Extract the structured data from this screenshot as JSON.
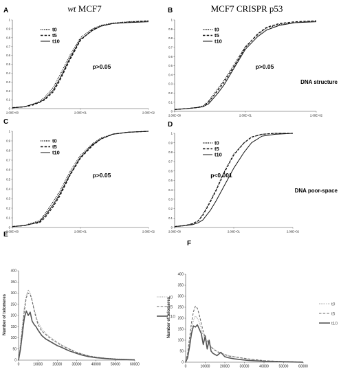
{
  "figure": {
    "col_titles": {
      "left_prefix": "wt",
      "left_suffix": " MCF7",
      "right": "MCF7 CRISPR p53"
    },
    "row_labels": {
      "top": "DNA structure",
      "middle": "DNA poor-space"
    }
  },
  "chart_data": [
    {
      "panel": "A",
      "type": "line",
      "x_scale": "log",
      "xlim": [
        2,
        200
      ],
      "ylim": [
        0,
        1
      ],
      "y_ticks": [
        "0",
        "0.1",
        "0.2",
        "0.3",
        "0.4",
        "0.5",
        "0.6",
        "0.7",
        "0.8",
        "0.9",
        "1"
      ],
      "x_ticks": [
        {
          "value": 2,
          "label": "2.00E+00"
        },
        {
          "value": 20,
          "label": "2.00E+01"
        },
        {
          "value": 200,
          "label": "2.00E+02"
        }
      ],
      "annotation": "p>0.05",
      "series": [
        {
          "name": "t0",
          "style": "dotted",
          "x": [
            2,
            3,
            4,
            5,
            6,
            8,
            10,
            14,
            20,
            30,
            40,
            60,
            100,
            200
          ],
          "y": [
            0.01,
            0.02,
            0.05,
            0.08,
            0.13,
            0.24,
            0.38,
            0.6,
            0.8,
            0.9,
            0.94,
            0.965,
            0.98,
            0.99
          ]
        },
        {
          "name": "t5",
          "style": "dashed",
          "x": [
            2,
            3,
            4,
            5,
            6,
            8,
            10,
            14,
            20,
            30,
            40,
            60,
            100,
            200
          ],
          "y": [
            0.01,
            0.02,
            0.04,
            0.07,
            0.1,
            0.19,
            0.32,
            0.55,
            0.77,
            0.89,
            0.93,
            0.96,
            0.975,
            0.99
          ]
        },
        {
          "name": "t10",
          "style": "solid",
          "x": [
            2,
            3,
            4,
            5,
            6,
            8,
            10,
            14,
            20,
            30,
            40,
            60,
            100,
            200
          ],
          "y": [
            0.01,
            0.02,
            0.05,
            0.07,
            0.11,
            0.21,
            0.34,
            0.57,
            0.78,
            0.88,
            0.93,
            0.96,
            0.97,
            0.98
          ]
        }
      ]
    },
    {
      "panel": "B",
      "type": "line",
      "x_scale": "log",
      "xlim": [
        2,
        200
      ],
      "ylim": [
        0,
        1
      ],
      "y_ticks": [
        "0",
        "0.1",
        "0.2",
        "0.3",
        "0.4",
        "0.5",
        "0.6",
        "0.7",
        "0.8",
        "0.9",
        "1"
      ],
      "x_ticks": [
        {
          "value": 2,
          "label": "2.00E+00"
        },
        {
          "value": 20,
          "label": "2.00E+01"
        },
        {
          "value": 200,
          "label": "2.00E+02"
        }
      ],
      "annotation": "p>0.05",
      "series": [
        {
          "name": "t0",
          "style": "dotted",
          "x": [
            2,
            3,
            4,
            5,
            6,
            8,
            10,
            14,
            20,
            30,
            40,
            60,
            100,
            200
          ],
          "y": [
            0.02,
            0.03,
            0.04,
            0.06,
            0.11,
            0.24,
            0.34,
            0.52,
            0.71,
            0.84,
            0.91,
            0.95,
            0.97,
            0.99
          ]
        },
        {
          "name": "t5",
          "style": "dashed",
          "x": [
            2,
            3,
            4,
            5,
            6,
            8,
            10,
            14,
            20,
            30,
            40,
            60,
            100,
            200
          ],
          "y": [
            0.02,
            0.03,
            0.04,
            0.05,
            0.1,
            0.22,
            0.32,
            0.5,
            0.7,
            0.85,
            0.92,
            0.96,
            0.98,
            0.99
          ]
        },
        {
          "name": "t10",
          "style": "solid",
          "x": [
            2,
            3,
            4,
            5,
            6,
            8,
            10,
            14,
            20,
            30,
            40,
            60,
            100,
            200
          ],
          "y": [
            0.02,
            0.03,
            0.04,
            0.05,
            0.08,
            0.19,
            0.29,
            0.48,
            0.68,
            0.82,
            0.89,
            0.94,
            0.97,
            0.98
          ]
        }
      ]
    },
    {
      "panel": "C",
      "type": "line",
      "x_scale": "log",
      "xlim": [
        2,
        200
      ],
      "ylim": [
        0,
        1
      ],
      "y_ticks": [
        "0",
        "0.1",
        "0.2",
        "0.3",
        "0.4",
        "0.5",
        "0.6",
        "0.7",
        "0.8",
        "0.9",
        "1"
      ],
      "x_ticks": [
        {
          "value": 2,
          "label": "2.00E+00"
        },
        {
          "value": 20,
          "label": "2.00E+01"
        },
        {
          "value": 200,
          "label": "2.00E+02"
        }
      ],
      "annotation": "p>0.05",
      "series": [
        {
          "name": "t0",
          "style": "dotted",
          "x": [
            2,
            3,
            4,
            5,
            6,
            8,
            10,
            14,
            20,
            30,
            40,
            60,
            100,
            200
          ],
          "y": [
            0.01,
            0.02,
            0.05,
            0.07,
            0.14,
            0.27,
            0.38,
            0.58,
            0.75,
            0.87,
            0.93,
            0.97,
            0.99,
            1.0
          ]
        },
        {
          "name": "t5",
          "style": "dashed",
          "x": [
            2,
            3,
            4,
            5,
            6,
            8,
            10,
            14,
            20,
            30,
            40,
            60,
            100,
            200
          ],
          "y": [
            0.01,
            0.02,
            0.04,
            0.05,
            0.1,
            0.22,
            0.33,
            0.54,
            0.72,
            0.85,
            0.92,
            0.97,
            0.99,
            1.0
          ]
        },
        {
          "name": "t10",
          "style": "solid",
          "x": [
            2,
            3,
            4,
            5,
            6,
            8,
            10,
            14,
            20,
            30,
            40,
            60,
            100,
            200
          ],
          "y": [
            0.01,
            0.02,
            0.04,
            0.06,
            0.12,
            0.24,
            0.35,
            0.55,
            0.73,
            0.86,
            0.92,
            0.97,
            0.99,
            1.0
          ]
        }
      ]
    },
    {
      "panel": "D",
      "type": "line",
      "x_scale": "log",
      "xlim": [
        2,
        200
      ],
      "ylim": [
        0,
        1
      ],
      "y_ticks": [
        "0",
        "0.1",
        "0.2",
        "0.3",
        "0.4",
        "0.5",
        "0.6",
        "0.7",
        "0.8",
        "0.9",
        "1"
      ],
      "x_ticks": [
        {
          "value": 2,
          "label": "2.00E+00"
        },
        {
          "value": 20,
          "label": "2.00E+01"
        },
        {
          "value": 200,
          "label": "2.00E+02"
        }
      ],
      "annotation": "p<0.001",
      "series": [
        {
          "name": "t0",
          "style": "dotted",
          "x": [
            2,
            3,
            4,
            5,
            6,
            8,
            10,
            14,
            20,
            30,
            40,
            60,
            100,
            200
          ],
          "y": [
            0.01,
            0.02,
            0.04,
            0.07,
            0.14,
            0.28,
            0.4,
            0.6,
            0.78,
            0.9,
            0.96,
            0.99,
            1.0,
            1.0
          ]
        },
        {
          "name": "t5",
          "style": "dashed",
          "x": [
            2,
            3,
            4,
            5,
            6,
            8,
            10,
            14,
            20,
            30,
            40,
            60,
            100,
            200
          ],
          "y": [
            0.01,
            0.02,
            0.04,
            0.07,
            0.13,
            0.27,
            0.39,
            0.59,
            0.77,
            0.9,
            0.96,
            0.99,
            1.0,
            1.0
          ]
        },
        {
          "name": "t10",
          "style": "solid",
          "x": [
            2,
            3,
            4,
            5,
            6,
            8,
            10,
            14,
            20,
            30,
            40,
            60,
            100,
            200
          ],
          "y": [
            0.01,
            0.02,
            0.03,
            0.05,
            0.08,
            0.18,
            0.28,
            0.45,
            0.63,
            0.8,
            0.9,
            0.97,
            0.99,
            1.0
          ]
        }
      ]
    },
    {
      "panel": "E",
      "type": "line",
      "xlim": [
        0,
        60000
      ],
      "ylim": [
        0,
        400
      ],
      "ylabel": "Number of telomeres",
      "y_ticks": [
        "0",
        "50",
        "100",
        "150",
        "200",
        "250",
        "300",
        "350",
        "400"
      ],
      "x_ticks": [
        {
          "value": 0,
          "label": "0"
        },
        {
          "value": 10000,
          "label": "10000"
        },
        {
          "value": 20000,
          "label": "20000"
        },
        {
          "value": 30000,
          "label": "30000"
        },
        {
          "value": 40000,
          "label": "40000"
        },
        {
          "value": 50000,
          "label": "50000"
        },
        {
          "value": 60000,
          "label": "60000"
        }
      ],
      "series": [
        {
          "name": "t0",
          "style": "dotted",
          "x": [
            0,
            1000,
            2000,
            3000,
            4000,
            5000,
            6000,
            7000,
            8000,
            9000,
            10000,
            12000,
            14000,
            16000,
            18000,
            20000,
            22000,
            24000,
            26000,
            28000,
            30000,
            33000,
            36000,
            40000,
            45000,
            50000,
            55000,
            60000
          ],
          "y": [
            0,
            80,
            160,
            240,
            290,
            315,
            300,
            270,
            230,
            200,
            170,
            140,
            120,
            105,
            92,
            80,
            70,
            60,
            52,
            44,
            36,
            28,
            20,
            14,
            9,
            6,
            4,
            2
          ]
        },
        {
          "name": "t5",
          "style": "dashed",
          "x": [
            0,
            1000,
            2000,
            3000,
            4000,
            5000,
            6000,
            7000,
            8000,
            9000,
            10000,
            12000,
            14000,
            16000,
            18000,
            20000,
            22000,
            24000,
            26000,
            28000,
            30000,
            33000,
            36000,
            40000,
            45000,
            50000,
            55000,
            60000
          ],
          "y": [
            0,
            60,
            140,
            220,
            280,
            300,
            295,
            265,
            225,
            190,
            160,
            130,
            115,
            100,
            88,
            78,
            66,
            58,
            50,
            42,
            34,
            26,
            19,
            13,
            8,
            5,
            3,
            2
          ]
        },
        {
          "name": "t10",
          "style": "solid",
          "x": [
            0,
            1000,
            2000,
            3000,
            4000,
            5000,
            6000,
            7000,
            8000,
            9000,
            10000,
            12000,
            14000,
            16000,
            18000,
            20000,
            22000,
            24000,
            26000,
            28000,
            30000,
            33000,
            36000,
            40000,
            45000,
            50000,
            55000,
            60000
          ],
          "y": [
            0,
            50,
            120,
            190,
            220,
            200,
            215,
            175,
            160,
            150,
            135,
            110,
            95,
            85,
            75,
            65,
            58,
            50,
            42,
            36,
            30,
            22,
            16,
            11,
            7,
            4,
            3,
            1
          ]
        }
      ]
    },
    {
      "panel": "F",
      "type": "line",
      "xlim": [
        0,
        60000
      ],
      "ylim": [
        0,
        400
      ],
      "ylabel": "Number of telomeres",
      "y_ticks": [
        "0",
        "50",
        "100",
        "150",
        "200",
        "250",
        "300",
        "350",
        "400"
      ],
      "x_ticks": [
        {
          "value": 0,
          "label": "0"
        },
        {
          "value": 10000,
          "label": "10000"
        },
        {
          "value": 20000,
          "label": "20000"
        },
        {
          "value": 30000,
          "label": "30000"
        },
        {
          "value": 40000,
          "label": "40000"
        },
        {
          "value": 50000,
          "label": "50000"
        },
        {
          "value": 60000,
          "label": "60000"
        }
      ],
      "series": [
        {
          "name": "t0",
          "style": "dotted",
          "x": [
            0,
            1000,
            2000,
            3000,
            4000,
            5000,
            6000,
            7000,
            8000,
            9000,
            10000,
            11000,
            12000,
            13000,
            14000,
            16000,
            18000,
            20000,
            22000,
            25000,
            28000,
            32000,
            36000,
            40000,
            45000,
            50000,
            55000,
            60000
          ],
          "y": [
            0,
            30,
            90,
            150,
            190,
            210,
            200,
            180,
            150,
            120,
            100,
            95,
            80,
            70,
            62,
            50,
            42,
            36,
            30,
            25,
            20,
            14,
            10,
            7,
            5,
            3,
            2,
            1
          ]
        },
        {
          "name": "t5",
          "style": "dashed",
          "x": [
            0,
            1000,
            2000,
            3000,
            4000,
            5000,
            6000,
            7000,
            8000,
            9000,
            10000,
            11000,
            12000,
            13000,
            14000,
            16000,
            18000,
            20000,
            22000,
            25000,
            28000,
            32000,
            36000,
            40000,
            45000,
            50000,
            55000,
            60000
          ],
          "y": [
            0,
            40,
            110,
            180,
            230,
            255,
            245,
            215,
            175,
            140,
            110,
            100,
            85,
            70,
            60,
            48,
            40,
            34,
            28,
            24,
            20,
            15,
            11,
            7,
            5,
            3,
            2,
            1
          ]
        },
        {
          "name": "t10",
          "style": "solid",
          "x": [
            0,
            1000,
            2000,
            3000,
            4000,
            5000,
            6000,
            7000,
            8000,
            9000,
            10000,
            11000,
            12000,
            13000,
            14000,
            16000,
            18000,
            20000,
            22000,
            25000,
            28000,
            32000,
            36000,
            40000,
            45000,
            50000,
            55000,
            60000
          ],
          "y": [
            0,
            20,
            70,
            130,
            165,
            160,
            170,
            150,
            130,
            80,
            120,
            60,
            100,
            50,
            40,
            30,
            45,
            25,
            20,
            15,
            12,
            8,
            6,
            4,
            3,
            2,
            1,
            0
          ]
        }
      ]
    }
  ]
}
